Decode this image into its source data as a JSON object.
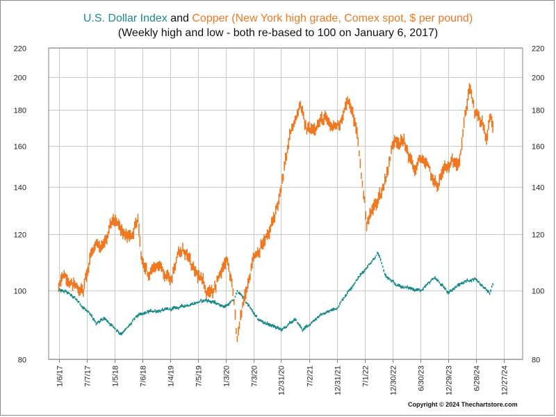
{
  "title": {
    "part1": "U.S. Dollar Index",
    "part2": " and ",
    "part3": "Copper (New York high grade, Comex spot, $ per pound)"
  },
  "subtitle": "(Weekly high and low - both re-based to 100 on January 6, 2017)",
  "copyright": "Copyright © 2024 Thechartstore.com",
  "colors": {
    "dollar": "#1a8a8a",
    "copper": "#f07820",
    "grid": "#c8c8c8",
    "axis": "#808080"
  },
  "chart_data": {
    "type": "line",
    "log_scale": true,
    "grid": true,
    "ylim": [
      80,
      220
    ],
    "y_ticks": [
      80,
      100,
      120,
      140,
      160,
      180,
      200,
      220
    ],
    "y_tick_labels": [
      "80",
      "100",
      "120",
      "140",
      "160",
      "180",
      "200",
      "220"
    ],
    "xlim": [
      "2016-11-01",
      "2025-05-01"
    ],
    "x_ticks": [
      "2017-01-06",
      "2017-07-07",
      "2018-01-05",
      "2018-07-06",
      "2019-01-04",
      "2019-07-05",
      "2020-01-03",
      "2020-07-03",
      "2020-12-31",
      "2021-07-02",
      "2021-12-31",
      "2022-07-01",
      "2022-12-30",
      "2023-06-30",
      "2023-12-29",
      "2024-06-28",
      "2024-12-27"
    ],
    "x_tick_labels": [
      "1/6/17",
      "7/7/17",
      "1/5/18",
      "7/6/18",
      "1/4/19",
      "7/5/19",
      "1/3/20",
      "7/3/20",
      "12/31/20",
      "7/2/21",
      "12/31/21",
      "7/1/22",
      "12/30/22",
      "6/30/23",
      "12/29/23",
      "6/28/24",
      "12/27/24"
    ],
    "series": [
      {
        "name": "U.S. Dollar Index",
        "color": "#1a8a8a",
        "x": [
          "2017-01-06",
          "2017-03-01",
          "2017-05-01",
          "2017-07-01",
          "2017-09-08",
          "2017-11-01",
          "2018-02-15",
          "2018-04-01",
          "2018-06-01",
          "2018-09-01",
          "2019-01-01",
          "2019-05-01",
          "2019-09-01",
          "2019-12-31",
          "2020-03-01",
          "2020-03-20",
          "2020-05-01",
          "2020-08-01",
          "2021-01-06",
          "2021-04-01",
          "2021-05-25",
          "2021-09-01",
          "2021-12-31",
          "2022-04-01",
          "2022-09-27",
          "2022-11-15",
          "2023-01-15",
          "2023-04-01",
          "2023-07-15",
          "2023-10-01",
          "2023-12-28",
          "2024-04-15",
          "2024-06-28",
          "2024-09-27",
          "2024-10-20"
        ],
        "values": [
          100,
          99.5,
          97,
          94,
          90,
          91.5,
          87,
          88.5,
          92,
          93.5,
          94,
          95.5,
          97,
          95,
          97,
          100,
          97.5,
          91,
          88,
          91,
          88,
          92,
          94.5,
          101,
          113,
          105,
          102,
          101,
          100,
          104.5,
          99.5,
          103,
          104,
          99,
          102.5
        ]
      },
      {
        "name": "Copper (New York high grade, Comex spot, $ per pound)",
        "color": "#f07820",
        "x": [
          "2017-01-06",
          "2017-02-10",
          "2017-04-15",
          "2017-06-15",
          "2017-07-28",
          "2017-09-05",
          "2017-10-15",
          "2017-12-28",
          "2018-03-15",
          "2018-05-01",
          "2018-06-08",
          "2018-07-01",
          "2018-08-15",
          "2018-10-15",
          "2019-01-04",
          "2019-02-25",
          "2019-04-15",
          "2019-05-30",
          "2019-07-05",
          "2019-09-03",
          "2019-10-15",
          "2020-01-14",
          "2020-02-15",
          "2020-03-19",
          "2020-05-01",
          "2020-07-03",
          "2020-08-15",
          "2020-10-15",
          "2020-12-31",
          "2021-02-25",
          "2021-05-10",
          "2021-06-15",
          "2021-08-15",
          "2021-10-18",
          "2021-11-15",
          "2022-01-15",
          "2022-03-07",
          "2022-04-15",
          "2022-05-15",
          "2022-07-14",
          "2022-09-15",
          "2022-11-01",
          "2023-01-16",
          "2023-03-15",
          "2023-05-24",
          "2023-07-15",
          "2023-10-15",
          "2023-12-01",
          "2024-01-15",
          "2024-03-15",
          "2024-05-20",
          "2024-06-20",
          "2024-08-15",
          "2024-09-10",
          "2024-09-30",
          "2024-10-20"
        ],
        "values": [
          100,
          106,
          102,
          100,
          110,
          117,
          116,
          126,
          119,
          121,
          126,
          110,
          106,
          109,
          104,
          112,
          114,
          107,
          105,
          100,
          101,
          110,
          101,
          85,
          97,
          112,
          115,
          120,
          138,
          165,
          182,
          168,
          172,
          175,
          169,
          172,
          185,
          178,
          165,
          125,
          133,
          140,
          165,
          162,
          148,
          154,
          140,
          148,
          150,
          155,
          196,
          178,
          171,
          162,
          178,
          170
        ]
      }
    ]
  }
}
